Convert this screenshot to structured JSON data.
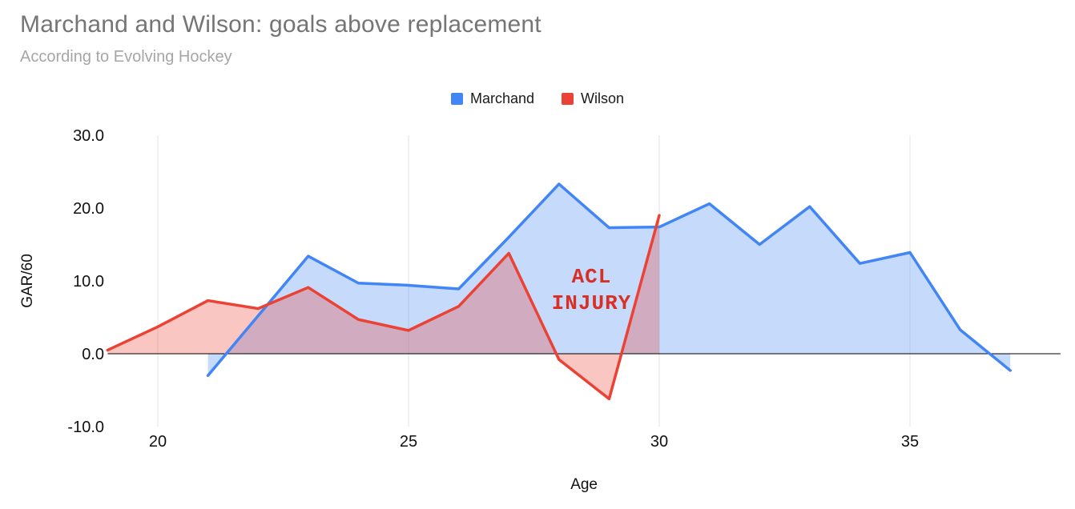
{
  "header": {
    "title": "Marchand and Wilson: goals above replacement",
    "subtitle": "According to Evolving Hockey"
  },
  "legend": {
    "items": [
      {
        "label": "Marchand",
        "color": "#4285F4"
      },
      {
        "label": "Wilson",
        "color": "#EA4335"
      }
    ]
  },
  "chart_data": {
    "type": "area",
    "title": "Marchand and Wilson: goals above replacement",
    "subtitle": "According to Evolving Hockey",
    "xlabel": "Age",
    "ylabel": "GAR/60",
    "xlim": [
      19,
      38
    ],
    "ylim": [
      -10,
      30
    ],
    "grid": {
      "vertical": true,
      "horizontal": false,
      "zero_line": true
    },
    "legend_position": "top",
    "x_ticks": [
      {
        "value": 20,
        "label": "20"
      },
      {
        "value": 25,
        "label": "25"
      },
      {
        "value": 30,
        "label": "30"
      },
      {
        "value": 35,
        "label": "35"
      }
    ],
    "y_ticks": [
      {
        "value": 30,
        "label": "30.0"
      },
      {
        "value": 20,
        "label": "20.0"
      },
      {
        "value": 10,
        "label": "10.0"
      },
      {
        "value": 0,
        "label": "0.0"
      },
      {
        "value": -10,
        "label": "-10.0"
      }
    ],
    "series": [
      {
        "name": "Marchand",
        "color": "#4285F4",
        "x": [
          21,
          22,
          23,
          24,
          25,
          26,
          27,
          28,
          29,
          30,
          31,
          32,
          33,
          34,
          35,
          36,
          37
        ],
        "values": [
          -3.0,
          5.2,
          13.4,
          9.7,
          9.4,
          8.9,
          16.0,
          23.3,
          17.3,
          17.4,
          20.6,
          15.0,
          20.2,
          12.4,
          13.9,
          3.3,
          -2.3
        ]
      },
      {
        "name": "Wilson",
        "color": "#EA4335",
        "x": [
          19,
          20,
          21,
          22,
          23,
          24,
          25,
          26,
          27,
          28,
          29,
          30
        ],
        "values": [
          0.5,
          3.7,
          7.3,
          6.2,
          9.1,
          4.7,
          3.2,
          6.5,
          13.8,
          -0.8,
          -6.2,
          19.0
        ]
      }
    ],
    "annotation": {
      "lines": [
        "ACL",
        "INJURY"
      ],
      "x": 28.65,
      "y": 9.8,
      "color": "#D93025"
    }
  }
}
